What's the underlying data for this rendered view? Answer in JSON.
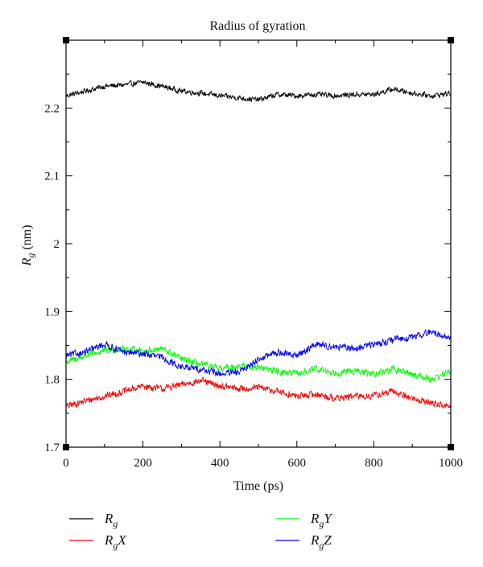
{
  "chart_data": {
    "type": "line",
    "title": "Radius of gyration",
    "xlabel": "Time (ps)",
    "ylabel": {
      "main": "R",
      "sub": "g",
      "rest": " (nm)"
    },
    "xlim": [
      0,
      1000
    ],
    "ylim": [
      1.7,
      2.3
    ],
    "xticks": [
      "0",
      "200",
      "400",
      "600",
      "800",
      "1000"
    ],
    "xtick_values": [
      0,
      200,
      400,
      600,
      800,
      1000
    ],
    "yticks": [
      "1.7",
      "1.8",
      "1.9",
      "2",
      "2.1",
      "2.2"
    ],
    "ytick_values": [
      1.7,
      1.8,
      1.9,
      2.0,
      2.1,
      2.2
    ],
    "grid": false,
    "legend_position": "bottom",
    "x": [
      0,
      50,
      100,
      150,
      200,
      250,
      300,
      350,
      400,
      450,
      500,
      550,
      600,
      650,
      700,
      750,
      800,
      850,
      900,
      950,
      1000
    ],
    "series": [
      {
        "name": "Rg",
        "legend_main": "R",
        "legend_sub": "g",
        "legend_suffix": "",
        "color": "#000000",
        "values": [
          2.218,
          2.225,
          2.232,
          2.234,
          2.238,
          2.232,
          2.225,
          2.222,
          2.218,
          2.215,
          2.212,
          2.22,
          2.218,
          2.22,
          2.218,
          2.22,
          2.22,
          2.228,
          2.222,
          2.218,
          2.222
        ]
      },
      {
        "name": "RgX",
        "legend_main": "R",
        "legend_sub": "g",
        "legend_suffix": "X",
        "color": "#ff0000",
        "values": [
          1.76,
          1.768,
          1.775,
          1.782,
          1.79,
          1.786,
          1.792,
          1.798,
          1.79,
          1.786,
          1.788,
          1.782,
          1.775,
          1.778,
          1.772,
          1.775,
          1.776,
          1.782,
          1.772,
          1.765,
          1.76
        ]
      },
      {
        "name": "RgY",
        "legend_main": "R",
        "legend_sub": "g",
        "legend_suffix": "Y",
        "color": "#00ff00",
        "values": [
          1.825,
          1.835,
          1.842,
          1.845,
          1.842,
          1.845,
          1.83,
          1.822,
          1.815,
          1.82,
          1.818,
          1.812,
          1.808,
          1.815,
          1.81,
          1.812,
          1.808,
          1.815,
          1.808,
          1.8,
          1.812
        ]
      },
      {
        "name": "RgZ",
        "legend_main": "R",
        "legend_sub": "g",
        "legend_suffix": "Z",
        "color": "#0000ff",
        "values": [
          1.835,
          1.84,
          1.852,
          1.84,
          1.838,
          1.832,
          1.818,
          1.815,
          1.808,
          1.81,
          1.83,
          1.84,
          1.835,
          1.852,
          1.848,
          1.845,
          1.852,
          1.858,
          1.862,
          1.87,
          1.86
        ]
      }
    ]
  }
}
